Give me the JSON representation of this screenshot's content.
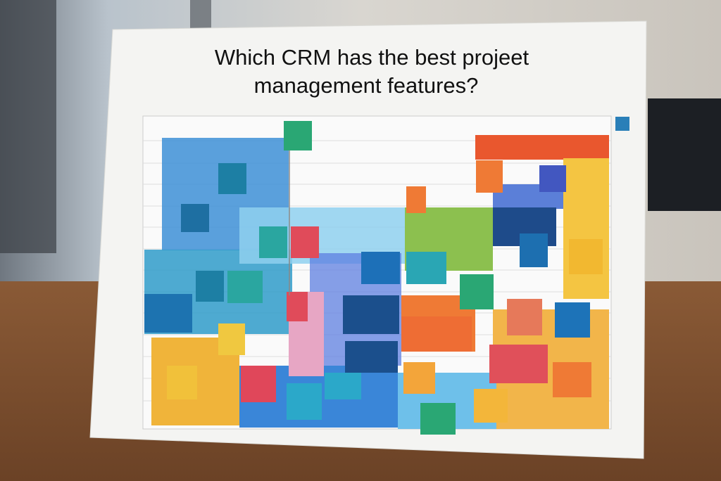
{
  "poster": {
    "title_lines": [
      "Which CRM has the best projeet",
      "management features?"
    ]
  }
}
